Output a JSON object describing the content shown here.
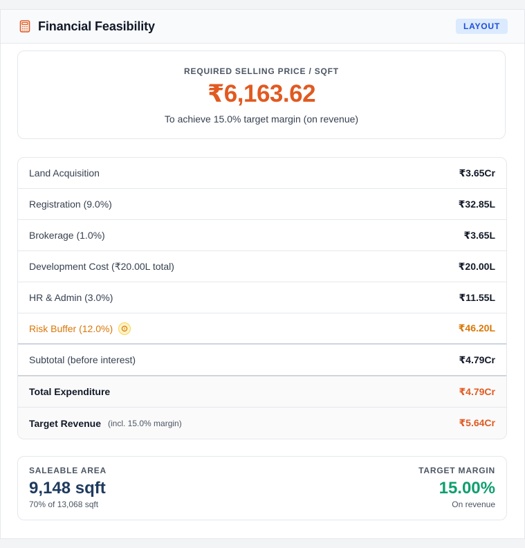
{
  "header": {
    "title": "Financial Feasibility",
    "badge": "LAYOUT",
    "icon": "calculator-icon"
  },
  "price": {
    "label": "REQUIRED SELLING PRICE / SQFT",
    "value": "₹6,163.62",
    "note": "To achieve 15.0% target margin (on revenue)"
  },
  "costs": {
    "rows": [
      {
        "label": "Land Acquisition",
        "value": "₹3.65Cr"
      },
      {
        "label": "Registration (9.0%)",
        "value": "₹32.85L"
      },
      {
        "label": "Brokerage (1.0%)",
        "value": "₹3.65L"
      },
      {
        "label": "Development Cost (₹20.00L total)",
        "value": "₹20.00L"
      },
      {
        "label": "HR & Admin (3.0%)",
        "value": "₹11.55L"
      }
    ],
    "risk": {
      "label": "Risk Buffer (12.0%)",
      "value": "₹46.20L",
      "icon": "info-icon"
    },
    "subtotal": {
      "label": "Subtotal (before interest)",
      "value": "₹4.79Cr"
    },
    "total": {
      "label": "Total Expenditure",
      "value": "₹4.79Cr"
    },
    "target": {
      "label": "Target Revenue",
      "sub": "(incl. 15.0% margin)",
      "value": "₹5.64Cr"
    }
  },
  "metrics": {
    "saleable": {
      "label": "SALEABLE AREA",
      "value": "9,148 sqft",
      "sub": "70% of 13,068 sqft"
    },
    "margin": {
      "label": "TARGET MARGIN",
      "value": "15.00%",
      "sub": "On revenue"
    }
  },
  "colors": {
    "accent": "#e15a21",
    "risk": "#d97706",
    "saleable": "#1e3a5f",
    "margin": "#0e9f6e",
    "badge_bg": "#dbeafe",
    "badge_text": "#1d4ed8"
  }
}
